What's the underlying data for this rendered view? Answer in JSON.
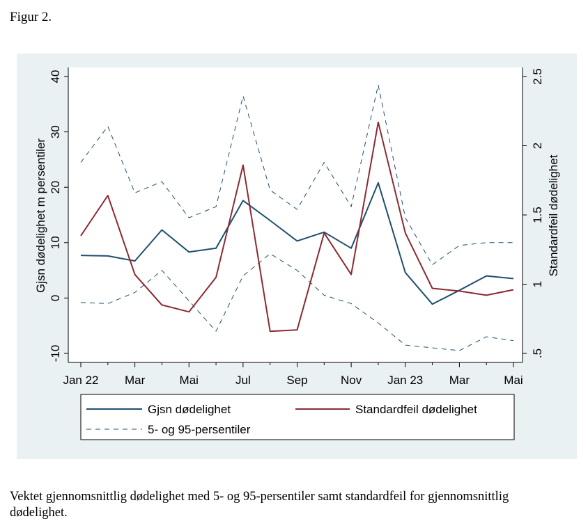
{
  "figure_title": "Figur 2.",
  "caption": "Vektet gjennomsnittlig dødelighet med 5- og 95-persentiler samt standardfeil for gjennomsnittlig dødelighet.",
  "colors": {
    "panel_background": "#e9f1f3",
    "mean_line": "#1f4e6e",
    "stderr_line": "#8b2a32",
    "percentile_line": "#1f4e6e"
  },
  "chart_data": {
    "type": "line",
    "xlabel": "",
    "ylabel": "Gjsn dødelighet m persentiler",
    "y2label": "Standardfeil dødelighet",
    "x": [
      "2022-01",
      "2022-02",
      "2022-03",
      "2022-04",
      "2022-05",
      "2022-06",
      "2022-07",
      "2022-08",
      "2022-09",
      "2022-10",
      "2022-11",
      "2022-12",
      "2023-01",
      "2023-02",
      "2023-03",
      "2023-04",
      "2023-05"
    ],
    "xticks": [
      "Jan 22",
      "Mar",
      "Mai",
      "Jul",
      "Sep",
      "Nov",
      "Jan 23",
      "Mar",
      "Mai"
    ],
    "ylim": [
      -10,
      40
    ],
    "yticks": [
      "-10",
      "0",
      "10",
      "20",
      "30",
      "40"
    ],
    "y2lim": [
      0.5,
      2.5
    ],
    "y2ticks": [
      ".5",
      "1",
      "1.5",
      "2",
      "2.5"
    ],
    "grid": false,
    "legend_position": "bottom",
    "series": [
      {
        "name": "Gjsn dødelighet",
        "axis": "left",
        "style": "solid",
        "values": [
          7.7,
          7.6,
          6.7,
          12.3,
          8.3,
          9.0,
          17.6,
          14.0,
          10.3,
          11.9,
          9.0,
          20.8,
          4.6,
          -1.1,
          1.4,
          4.0,
          3.5
        ]
      },
      {
        "name": "Standardfeil dødelighet",
        "axis": "right",
        "style": "solid",
        "values": [
          1.35,
          1.64,
          1.07,
          0.85,
          0.8,
          1.05,
          1.86,
          0.66,
          0.67,
          1.37,
          1.07,
          2.17,
          1.37,
          0.97,
          0.95,
          0.92,
          0.96
        ]
      },
      {
        "name": "5- og 95-persentiler",
        "axis": "left",
        "style": "dashed",
        "values": [
          24.5,
          31.0,
          19.0,
          21.0,
          14.5,
          16.5,
          36.5,
          19.5,
          16.0,
          24.5,
          16.5,
          38.5,
          14.5,
          6.0,
          9.5,
          10.0,
          10.0
        ]
      },
      {
        "name": "5- og 95-persentiler",
        "axis": "left",
        "style": "dashed",
        "values": [
          -0.8,
          -1.0,
          1.0,
          5.0,
          -0.5,
          -6.0,
          4.0,
          8.0,
          5.0,
          0.5,
          -1.0,
          -4.5,
          -8.5,
          -9.0,
          -9.5,
          -7.0,
          -7.7
        ]
      }
    ],
    "legend": [
      "Gjsn dødelighet",
      "Standardfeil dødelighet",
      "5- og 95-persentiler"
    ]
  }
}
